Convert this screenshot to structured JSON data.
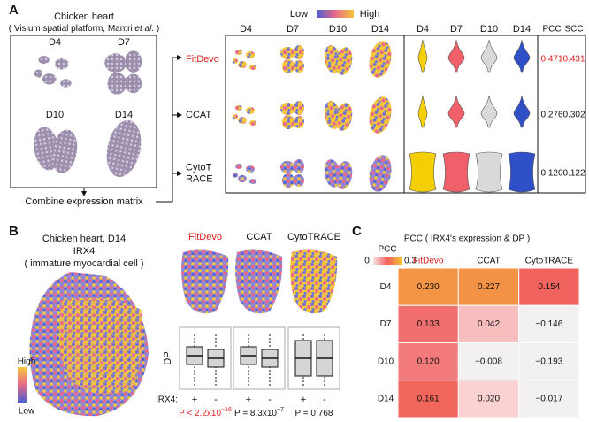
{
  "panel_a": {
    "label": "A",
    "source": {
      "title": "Chicken heart",
      "subtitle_pre": "( Visium spatial platform, Mantri ",
      "subtitle_italic": "et al.",
      "subtitle_post": " )",
      "days": [
        "D4",
        "D7",
        "D10",
        "D14"
      ]
    },
    "combine_label": "Combine expression matrix",
    "colorbar": {
      "low": "Low",
      "high": "High"
    },
    "spatial_headers": [
      "D4",
      "D7",
      "D10",
      "D14"
    ],
    "violin_headers": [
      "D4",
      "D7",
      "D10",
      "D14"
    ],
    "metric_headers": [
      "PCC",
      "SCC"
    ],
    "methods": [
      {
        "name": [
          "FitDevo"
        ],
        "pcc": "0.471",
        "scc": "0.431"
      },
      {
        "name": [
          "CCAT"
        ],
        "pcc": "0.276",
        "scc": "0.302"
      },
      {
        "name": [
          "CytoT",
          "RACE"
        ],
        "pcc": "0.120",
        "scc": "0.122"
      }
    ]
  },
  "panel_b": {
    "label": "B",
    "title": "Chicken heart, D14",
    "gene": "IRX4",
    "cell_type": "( immature myocardial cell )",
    "legend": {
      "high": "High",
      "low": "Low"
    },
    "methods": [
      "FitDevo",
      "CCAT",
      "CytoTRACE"
    ],
    "y_label": "DP",
    "group_label": "IRX4:",
    "groups": [
      "+",
      "-"
    ],
    "p_values": [
      {
        "pre": "P < 2.2x10",
        "sup": "−16"
      },
      {
        "pre": "P = 8.3x10",
        "sup": "−7"
      },
      {
        "pre": "P = 0.768"
      }
    ]
  },
  "panel_c": {
    "label": "C",
    "title": "PCC ( IRX4's expression & DP )",
    "colorbar": {
      "label": "PCC",
      "min": 0,
      "max": 0.3
    },
    "columns": [
      "FitDevo",
      "CCAT",
      "CytoTRACE"
    ],
    "rows": [
      "D4",
      "D7",
      "D10",
      "D14"
    ],
    "cells": [
      [
        "0.230",
        "0.227",
        "0.154"
      ],
      [
        "0.133",
        "0.042",
        "−0.146"
      ],
      [
        "0.120",
        "−0.008",
        "−0.193"
      ],
      [
        "0.161",
        "0.020",
        "−0.017"
      ]
    ]
  }
}
